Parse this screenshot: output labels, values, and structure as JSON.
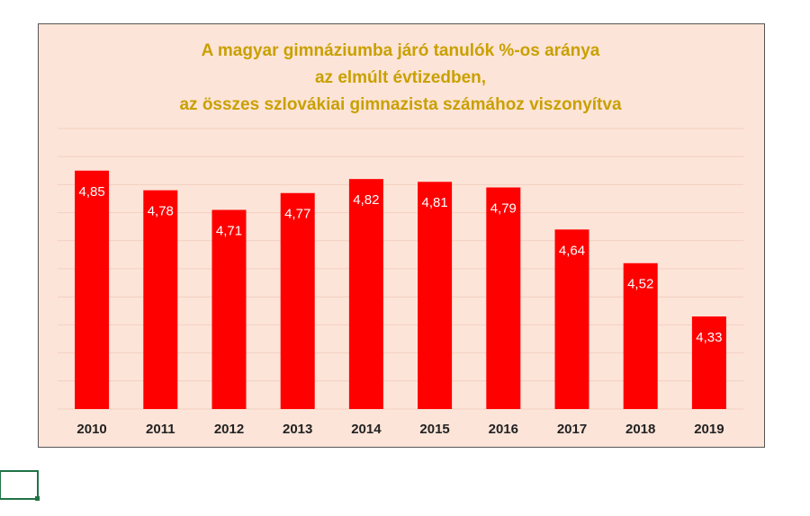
{
  "chart_data": {
    "type": "bar",
    "title": [
      "A magyar gimnáziumba járó tanulók %-os aránya",
      "az elmúlt évtizedben,",
      "az összes szlovákiai gimnazista számához viszonyítva"
    ],
    "categories": [
      "2010",
      "2011",
      "2012",
      "2013",
      "2014",
      "2015",
      "2016",
      "2017",
      "2018",
      "2019"
    ],
    "values": [
      4.85,
      4.78,
      4.71,
      4.77,
      4.82,
      4.81,
      4.79,
      4.64,
      4.52,
      4.33
    ],
    "value_labels": [
      "4,85",
      "4,78",
      "4,71",
      "4,77",
      "4,82",
      "4,81",
      "4,79",
      "4,64",
      "4,52",
      "4,33"
    ],
    "color": "#ff0000",
    "ylim": [
      4,
      5
    ],
    "yticks": [
      4,
      4.1,
      4.2,
      4.3,
      4.4,
      4.5,
      4.6,
      4.7,
      4.8,
      4.9,
      5
    ],
    "grid": true
  }
}
